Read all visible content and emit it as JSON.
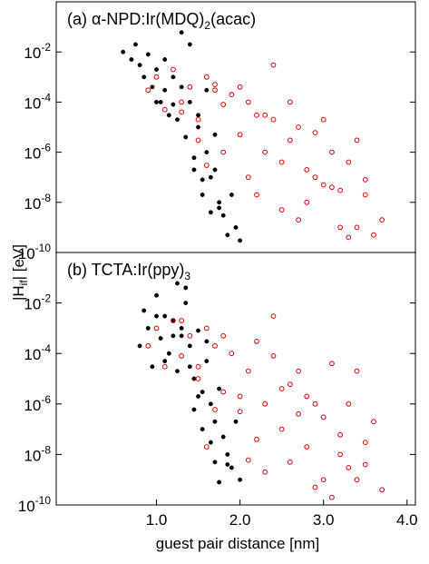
{
  "chart_data": [
    {
      "type": "scatter",
      "title": [
        "(a)  α-NPD:Ir(MDQ)",
        "2",
        "(acac)"
      ],
      "log_y": true,
      "xlim": [
        -0.2,
        4.1
      ],
      "ylim": [
        1e-10,
        1
      ],
      "yticks": [
        {
          "value": 0.01,
          "label": "10-2"
        },
        {
          "value": 0.0001,
          "label": "10-4"
        },
        {
          "value": 1e-06,
          "label": "10-6"
        },
        {
          "value": 1e-08,
          "label": "10-8"
        },
        {
          "value": 1e-10,
          "label": "10-10"
        }
      ],
      "series": [
        {
          "color": "#000000",
          "marker": "filled",
          "x": [
            0.6,
            0.7,
            0.75,
            0.8,
            0.85,
            0.9,
            0.95,
            1.0,
            1.05,
            1.1,
            1.15,
            1.2,
            1.25,
            1.3,
            1.35,
            1.4,
            1.45,
            1.5,
            1.55,
            1.6,
            1.65,
            1.7,
            1.75,
            1.8,
            1.85,
            1.9,
            1.95,
            2.0,
            1.3,
            1.4,
            1.5,
            1.6,
            1.7,
            1.2,
            1.1,
            1.0,
            1.45,
            1.55,
            1.65,
            1.75
          ],
          "values": [
            0.01,
            0.005,
            0.02,
            0.003,
            0.001,
            0.008,
            0.0004,
            0.002,
            0.0001,
            0.005,
            3e-05,
            0.001,
            2e-05,
            0.06,
            4e-06,
            0.0001,
            2e-07,
            3e-05,
            8e-08,
            1e-06,
            4e-09,
            2e-07,
            1e-08,
            3e-09,
            5e-10,
            2e-08,
            1e-09,
            3e-10,
            0.0004,
            0.02,
            1e-05,
            0.0003,
            5e-06,
            8e-05,
            0.0003,
            0.0001,
            6e-07,
            2e-08,
            1e-07,
            6e-09
          ]
        },
        {
          "color": "#e00000",
          "marker": "open",
          "x": [
            0.9,
            1.0,
            1.1,
            1.2,
            1.3,
            1.4,
            1.5,
            1.6,
            1.7,
            1.8,
            1.9,
            2.0,
            2.1,
            2.2,
            2.3,
            2.4,
            2.5,
            2.6,
            2.7,
            2.8,
            2.9,
            3.0,
            3.1,
            3.2,
            3.3,
            3.4,
            3.5,
            3.6,
            3.7,
            1.5,
            1.8,
            2.0,
            2.2,
            2.4,
            2.6,
            2.8,
            3.0,
            3.2,
            3.4,
            1.3,
            1.7,
            2.1,
            2.5,
            2.9,
            3.3,
            2.3,
            2.7,
            3.1,
            3.5,
            1.6
          ],
          "values": [
            0.0003,
            0.001,
            5e-05,
            0.002,
            0.0001,
            0.0004,
            2e-05,
            0.001,
            0.0005,
            8e-05,
            0.0002,
            5e-06,
            0.0001,
            3e-05,
            1e-06,
            2e-05,
            4e-07,
            3e-06,
            1e-05,
            2e-07,
            6e-06,
            5e-08,
            1e-06,
            3e-08,
            4e-07,
            1e-09,
            2e-08,
            5e-10,
            2e-09,
            3e-06,
            1e-06,
            0.0004,
            2e-08,
            0.003,
            0.0001,
            1e-08,
            2e-05,
            1e-09,
            3e-06,
            4e-05,
            0.0003,
            1e-07,
            5e-09,
            1e-07,
            4e-10,
            3e-05,
            2e-09,
            4e-08,
            8e-08,
            3e-07
          ]
        }
      ]
    },
    {
      "type": "scatter",
      "title": [
        "(b)  TCTA:Ir(ppy)",
        "3"
      ],
      "log_y": true,
      "xlim": [
        -0.2,
        4.1
      ],
      "ylim": [
        1e-10,
        1
      ],
      "xticks": [
        {
          "value": 1,
          "label": "1.0"
        },
        {
          "value": 2,
          "label": "2.0"
        },
        {
          "value": 3,
          "label": "3.0"
        },
        {
          "value": 4,
          "label": "4.0"
        }
      ],
      "yticks": [
        {
          "value": 0.01,
          "label": "10-2"
        },
        {
          "value": 0.0001,
          "label": "10-4"
        },
        {
          "value": 1e-06,
          "label": "10-6"
        },
        {
          "value": 1e-08,
          "label": "10-8"
        },
        {
          "value": 1e-10,
          "label": "10-10"
        }
      ],
      "series": [
        {
          "color": "#000000",
          "marker": "filled",
          "x": [
            0.8,
            0.85,
            0.9,
            0.95,
            1.0,
            1.05,
            1.1,
            1.15,
            1.2,
            1.25,
            1.3,
            1.35,
            1.4,
            1.45,
            1.5,
            1.55,
            1.6,
            1.65,
            1.7,
            1.75,
            1.8,
            1.85,
            1.9,
            1.95,
            2.0,
            1.3,
            1.4,
            1.5,
            1.6,
            1.7,
            1.2,
            1.1,
            1.0,
            1.45,
            1.55,
            1.65,
            1.75,
            1.85,
            1.35,
            1.25
          ],
          "values": [
            0.0002,
            0.005,
            0.001,
            3e-05,
            0.02,
            0.0004,
            0.003,
            0.0001,
            0.002,
            0.06,
            0.0005,
            0.04,
            0.0002,
            1e-05,
            0.0008,
            3e-06,
            5e-05,
            1e-06,
            2e-07,
            4e-06,
            5e-08,
            1e-08,
            3e-09,
            2e-07,
            1e-09,
            0.001,
            3e-05,
            2e-06,
            0.0003,
            5e-09,
            0.0005,
            5e-05,
            0.003,
            6e-07,
            1e-07,
            3e-08,
            8e-10,
            4e-09,
            0.01,
            2e-05
          ]
        },
        {
          "color": "#e00000",
          "marker": "open",
          "x": [
            0.9,
            1.0,
            1.1,
            1.2,
            1.3,
            1.4,
            1.5,
            1.6,
            1.7,
            1.8,
            1.9,
            2.0,
            2.1,
            2.2,
            2.3,
            2.4,
            2.5,
            2.6,
            2.7,
            2.8,
            2.9,
            3.0,
            3.1,
            3.2,
            3.3,
            3.4,
            3.5,
            3.6,
            3.7,
            1.5,
            1.8,
            2.0,
            2.2,
            2.4,
            2.6,
            2.8,
            3.0,
            3.2,
            3.4,
            1.3,
            1.7,
            2.1,
            2.5,
            2.9,
            3.3,
            2.3,
            2.7,
            3.1,
            3.5,
            1.6
          ],
          "values": [
            0.0002,
            0.001,
            3e-05,
            0.002,
            8e-05,
            0.0005,
            1e-05,
            0.001,
            0.0002,
            3e-06,
            0.0001,
            5e-07,
            2e-05,
            0.0003,
            1e-06,
            8e-05,
            1e-07,
            6e-06,
            2e-05,
            2e-08,
            1e-06,
            3e-07,
            4e-05,
            1e-08,
            1e-06,
            1e-09,
            3e-08,
            2e-07,
            4e-10,
            3e-05,
            0.0005,
            2e-06,
            4e-08,
            0.003,
            5e-09,
            2e-06,
            1e-09,
            6e-08,
            2e-05,
            0.002,
            6e-07,
            6e-09,
            4e-06,
            5e-10,
            3e-09,
            2e-09,
            4e-07,
            2e-10,
            4e-09,
            2e-08
          ]
        }
      ]
    }
  ],
  "xlabel": "guest pair distance [nm]",
  "ylabel": [
    "|H",
    "if",
    "| [eV]"
  ]
}
